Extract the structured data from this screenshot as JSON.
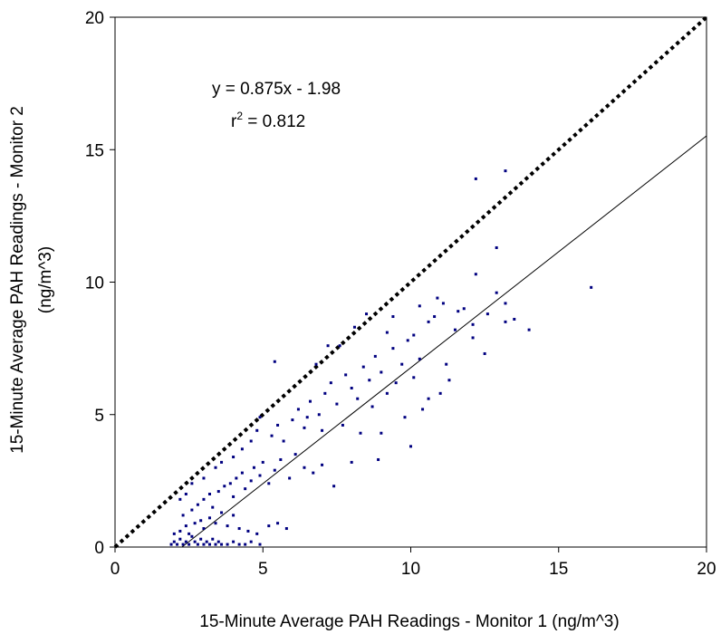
{
  "chart_data": {
    "type": "scatter",
    "xlabel": "15-Minute Average PAH Readings - Monitor 1 (ng/m^3)",
    "ylabel_line1": "15-Minute Average PAH Readings - Monitor 2",
    "ylabel_line2": "(ng/m^3)",
    "xlim": [
      0,
      20
    ],
    "ylim": [
      0,
      20
    ],
    "x_ticks": [
      "0",
      "5",
      "10",
      "15",
      "20"
    ],
    "y_ticks": [
      "0",
      "5",
      "10",
      "15",
      "20"
    ],
    "grid": false,
    "annotation": {
      "equation": "y = 0.875x - 1.98",
      "r_squared_prefix": "r",
      "r_squared_exponent": "2",
      "r_squared_value": " = 0.812"
    },
    "reference_line": {
      "style": "dotted",
      "slope": 1,
      "intercept": 0
    },
    "trendline": {
      "style": "solid",
      "slope": 0.875,
      "intercept": -1.98
    },
    "marker_color": "#000080",
    "points": [
      [
        1.9,
        0.1
      ],
      [
        2.0,
        0.2
      ],
      [
        2.1,
        0.1
      ],
      [
        2.2,
        0.3
      ],
      [
        2.3,
        0.1
      ],
      [
        2.4,
        0.2
      ],
      [
        2.5,
        0.1
      ],
      [
        2.6,
        0.4
      ],
      [
        2.7,
        0.2
      ],
      [
        2.8,
        0.1
      ],
      [
        2.9,
        0.3
      ],
      [
        3.0,
        0.1
      ],
      [
        3.1,
        0.2
      ],
      [
        3.2,
        0.1
      ],
      [
        3.3,
        0.3
      ],
      [
        3.4,
        0.1
      ],
      [
        3.5,
        0.2
      ],
      [
        3.6,
        0.1
      ],
      [
        3.8,
        0.1
      ],
      [
        4.0,
        0.2
      ],
      [
        4.2,
        0.1
      ],
      [
        4.4,
        0.1
      ],
      [
        4.6,
        0.2
      ],
      [
        4.9,
        0.1
      ],
      [
        2.0,
        0.5
      ],
      [
        2.2,
        0.6
      ],
      [
        2.4,
        0.8
      ],
      [
        2.5,
        0.5
      ],
      [
        2.7,
        0.9
      ],
      [
        2.9,
        1.0
      ],
      [
        3.0,
        0.7
      ],
      [
        3.2,
        1.1
      ],
      [
        3.4,
        0.9
      ],
      [
        3.6,
        1.3
      ],
      [
        3.8,
        0.8
      ],
      [
        4.0,
        1.2
      ],
      [
        4.2,
        0.7
      ],
      [
        4.5,
        0.6
      ],
      [
        4.8,
        0.5
      ],
      [
        5.2,
        0.8
      ],
      [
        5.5,
        0.9
      ],
      [
        5.8,
        0.7
      ],
      [
        2.3,
        1.2
      ],
      [
        2.6,
        1.4
      ],
      [
        2.8,
        1.6
      ],
      [
        3.0,
        1.8
      ],
      [
        3.2,
        2.0
      ],
      [
        3.3,
        1.5
      ],
      [
        3.5,
        2.1
      ],
      [
        3.7,
        2.3
      ],
      [
        3.9,
        2.4
      ],
      [
        4.0,
        1.9
      ],
      [
        4.1,
        2.6
      ],
      [
        4.3,
        2.8
      ],
      [
        4.4,
        2.2
      ],
      [
        4.6,
        2.5
      ],
      [
        4.7,
        3.0
      ],
      [
        4.9,
        2.7
      ],
      [
        5.0,
        3.2
      ],
      [
        5.2,
        2.4
      ],
      [
        5.4,
        2.9
      ],
      [
        5.6,
        3.3
      ],
      [
        5.9,
        2.6
      ],
      [
        6.1,
        3.5
      ],
      [
        6.4,
        3.0
      ],
      [
        6.7,
        2.8
      ],
      [
        7.0,
        3.1
      ],
      [
        7.4,
        2.3
      ],
      [
        8.0,
        3.2
      ],
      [
        8.9,
        3.3
      ],
      [
        2.2,
        1.8
      ],
      [
        2.4,
        2.0
      ],
      [
        2.6,
        2.4
      ],
      [
        3.0,
        2.6
      ],
      [
        3.4,
        3.0
      ],
      [
        3.6,
        3.2
      ],
      [
        4.0,
        3.4
      ],
      [
        4.3,
        3.7
      ],
      [
        4.6,
        4.0
      ],
      [
        4.8,
        4.4
      ],
      [
        4.9,
        4.9
      ],
      [
        5.3,
        4.2
      ],
      [
        5.5,
        4.6
      ],
      [
        5.7,
        4.0
      ],
      [
        6.0,
        4.8
      ],
      [
        6.2,
        5.2
      ],
      [
        6.4,
        4.5
      ],
      [
        6.6,
        5.5
      ],
      [
        6.9,
        5.0
      ],
      [
        7.1,
        5.8
      ],
      [
        7.3,
        6.2
      ],
      [
        7.5,
        5.4
      ],
      [
        7.8,
        6.5
      ],
      [
        8.0,
        6.0
      ],
      [
        8.2,
        5.6
      ],
      [
        8.4,
        6.8
      ],
      [
        8.6,
        6.3
      ],
      [
        8.8,
        7.2
      ],
      [
        9.0,
        6.6
      ],
      [
        9.2,
        5.8
      ],
      [
        9.4,
        7.5
      ],
      [
        9.7,
        6.9
      ],
      [
        9.9,
        7.8
      ],
      [
        10.1,
        8.0
      ],
      [
        10.3,
        7.1
      ],
      [
        10.6,
        8.5
      ],
      [
        10.9,
        9.4
      ],
      [
        11.1,
        9.2
      ],
      [
        11.5,
        8.2
      ],
      [
        11.8,
        9.0
      ],
      [
        12.1,
        8.4
      ],
      [
        12.2,
        10.3
      ],
      [
        12.6,
        8.8
      ],
      [
        12.9,
        9.6
      ],
      [
        13.2,
        9.2
      ],
      [
        13.5,
        8.6
      ],
      [
        5.4,
        7.0
      ],
      [
        6.8,
        6.9
      ],
      [
        7.6,
        7.6
      ],
      [
        8.5,
        8.8
      ],
      [
        9.2,
        8.1
      ],
      [
        8.3,
        4.3
      ],
      [
        9.5,
        6.2
      ],
      [
        10.1,
        6.4
      ],
      [
        10.6,
        5.6
      ],
      [
        11.2,
        6.9
      ],
      [
        11.6,
        8.9
      ],
      [
        12.1,
        7.9
      ],
      [
        12.5,
        7.3
      ],
      [
        12.9,
        11.3
      ],
      [
        13.2,
        8.5
      ],
      [
        14.0,
        8.2
      ],
      [
        12.2,
        13.9
      ],
      [
        13.2,
        14.2
      ],
      [
        16.1,
        9.8
      ],
      [
        7.2,
        7.6
      ],
      [
        8.1,
        8.3
      ],
      [
        9.4,
        8.7
      ],
      [
        10.3,
        9.1
      ],
      [
        10.8,
        8.7
      ],
      [
        6.5,
        4.9
      ],
      [
        7.0,
        4.4
      ],
      [
        7.7,
        4.6
      ],
      [
        8.7,
        5.3
      ],
      [
        9.0,
        4.3
      ],
      [
        9.8,
        4.9
      ],
      [
        10.4,
        5.2
      ],
      [
        11.0,
        5.8
      ],
      [
        10.0,
        3.8
      ],
      [
        11.3,
        6.3
      ]
    ]
  }
}
